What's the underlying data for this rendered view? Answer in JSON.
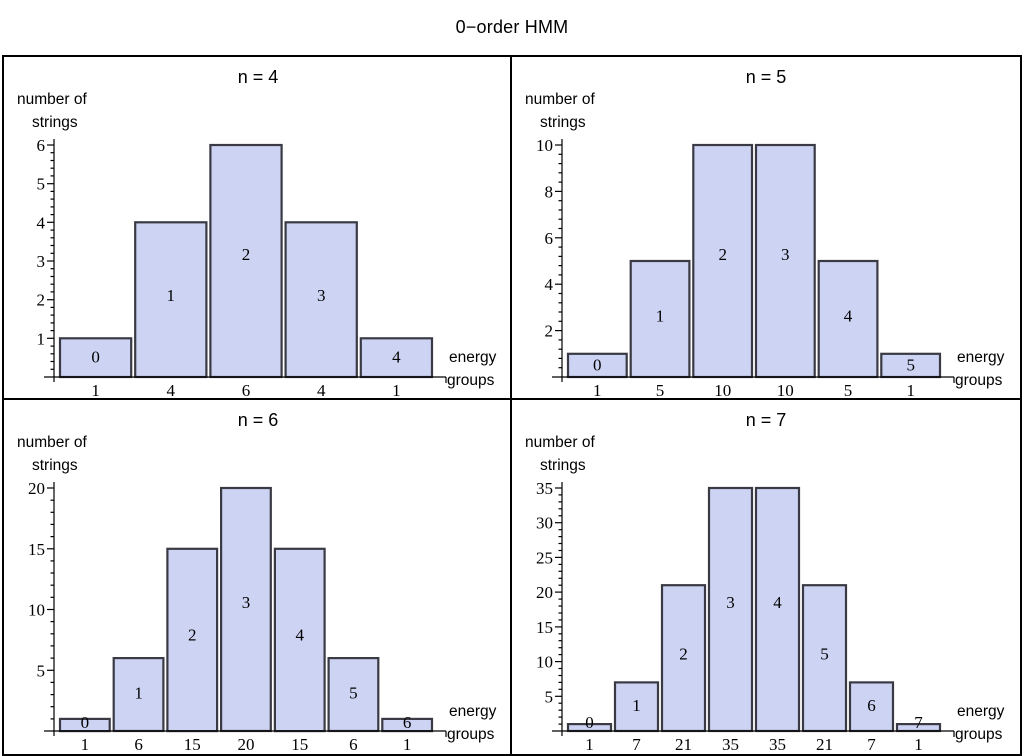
{
  "page_title": "0−order HMM",
  "axis_labels": {
    "ylabel_line1": "number of",
    "ylabel_line2": "strings",
    "xlabel_line1": "energy",
    "xlabel_line2": "groups"
  },
  "colors": {
    "bar_fill": "#cdd3f3",
    "bar_stroke": "#3a3a44",
    "axis": "#000000",
    "frame": "#000000",
    "text": "#000000"
  },
  "chart_data": [
    {
      "type": "bar",
      "title": "n = 4",
      "ylabel": "number of strings",
      "xlabel": "energy groups",
      "categories": [
        "1",
        "4",
        "6",
        "4",
        "1"
      ],
      "values": [
        1,
        4,
        6,
        4,
        1
      ],
      "bar_labels": [
        "0",
        "1",
        "2",
        "3",
        "4"
      ],
      "yticks": [
        1,
        2,
        3,
        4,
        5,
        6
      ],
      "ylim": [
        0,
        6
      ],
      "y_minor_step": 0.2,
      "grid_on": false,
      "legend": "none"
    },
    {
      "type": "bar",
      "title": "n = 5",
      "ylabel": "number of strings",
      "xlabel": "energy groups",
      "categories": [
        "1",
        "5",
        "10",
        "10",
        "5",
        "1"
      ],
      "values": [
        1,
        5,
        10,
        10,
        5,
        1
      ],
      "bar_labels": [
        "0",
        "1",
        "2",
        "3",
        "4",
        "5"
      ],
      "yticks": [
        2,
        4,
        6,
        8,
        10
      ],
      "ylim": [
        0,
        10
      ],
      "y_minor_step": 0.4,
      "grid_on": false,
      "legend": "none"
    },
    {
      "type": "bar",
      "title": "n = 6",
      "ylabel": "number of strings",
      "xlabel": "energy groups",
      "categories": [
        "1",
        "6",
        "15",
        "20",
        "15",
        "6",
        "1"
      ],
      "values": [
        1,
        6,
        15,
        20,
        15,
        6,
        1
      ],
      "bar_labels": [
        "0",
        "1",
        "2",
        "3",
        "4",
        "5",
        "6"
      ],
      "yticks": [
        5,
        10,
        15,
        20
      ],
      "ylim": [
        0,
        20
      ],
      "y_minor_step": 1,
      "grid_on": false,
      "legend": "none"
    },
    {
      "type": "bar",
      "title": "n = 7",
      "ylabel": "number of strings",
      "xlabel": "energy groups",
      "categories": [
        "1",
        "7",
        "21",
        "35",
        "35",
        "21",
        "7",
        "1"
      ],
      "values": [
        1,
        7,
        21,
        35,
        35,
        21,
        7,
        1
      ],
      "bar_labels": [
        "0",
        "1",
        "2",
        "3",
        "4",
        "5",
        "6",
        "7"
      ],
      "yticks": [
        5,
        10,
        15,
        20,
        25,
        30,
        35
      ],
      "ylim": [
        0,
        35
      ],
      "y_minor_step": 1,
      "grid_on": false,
      "legend": "none"
    }
  ]
}
